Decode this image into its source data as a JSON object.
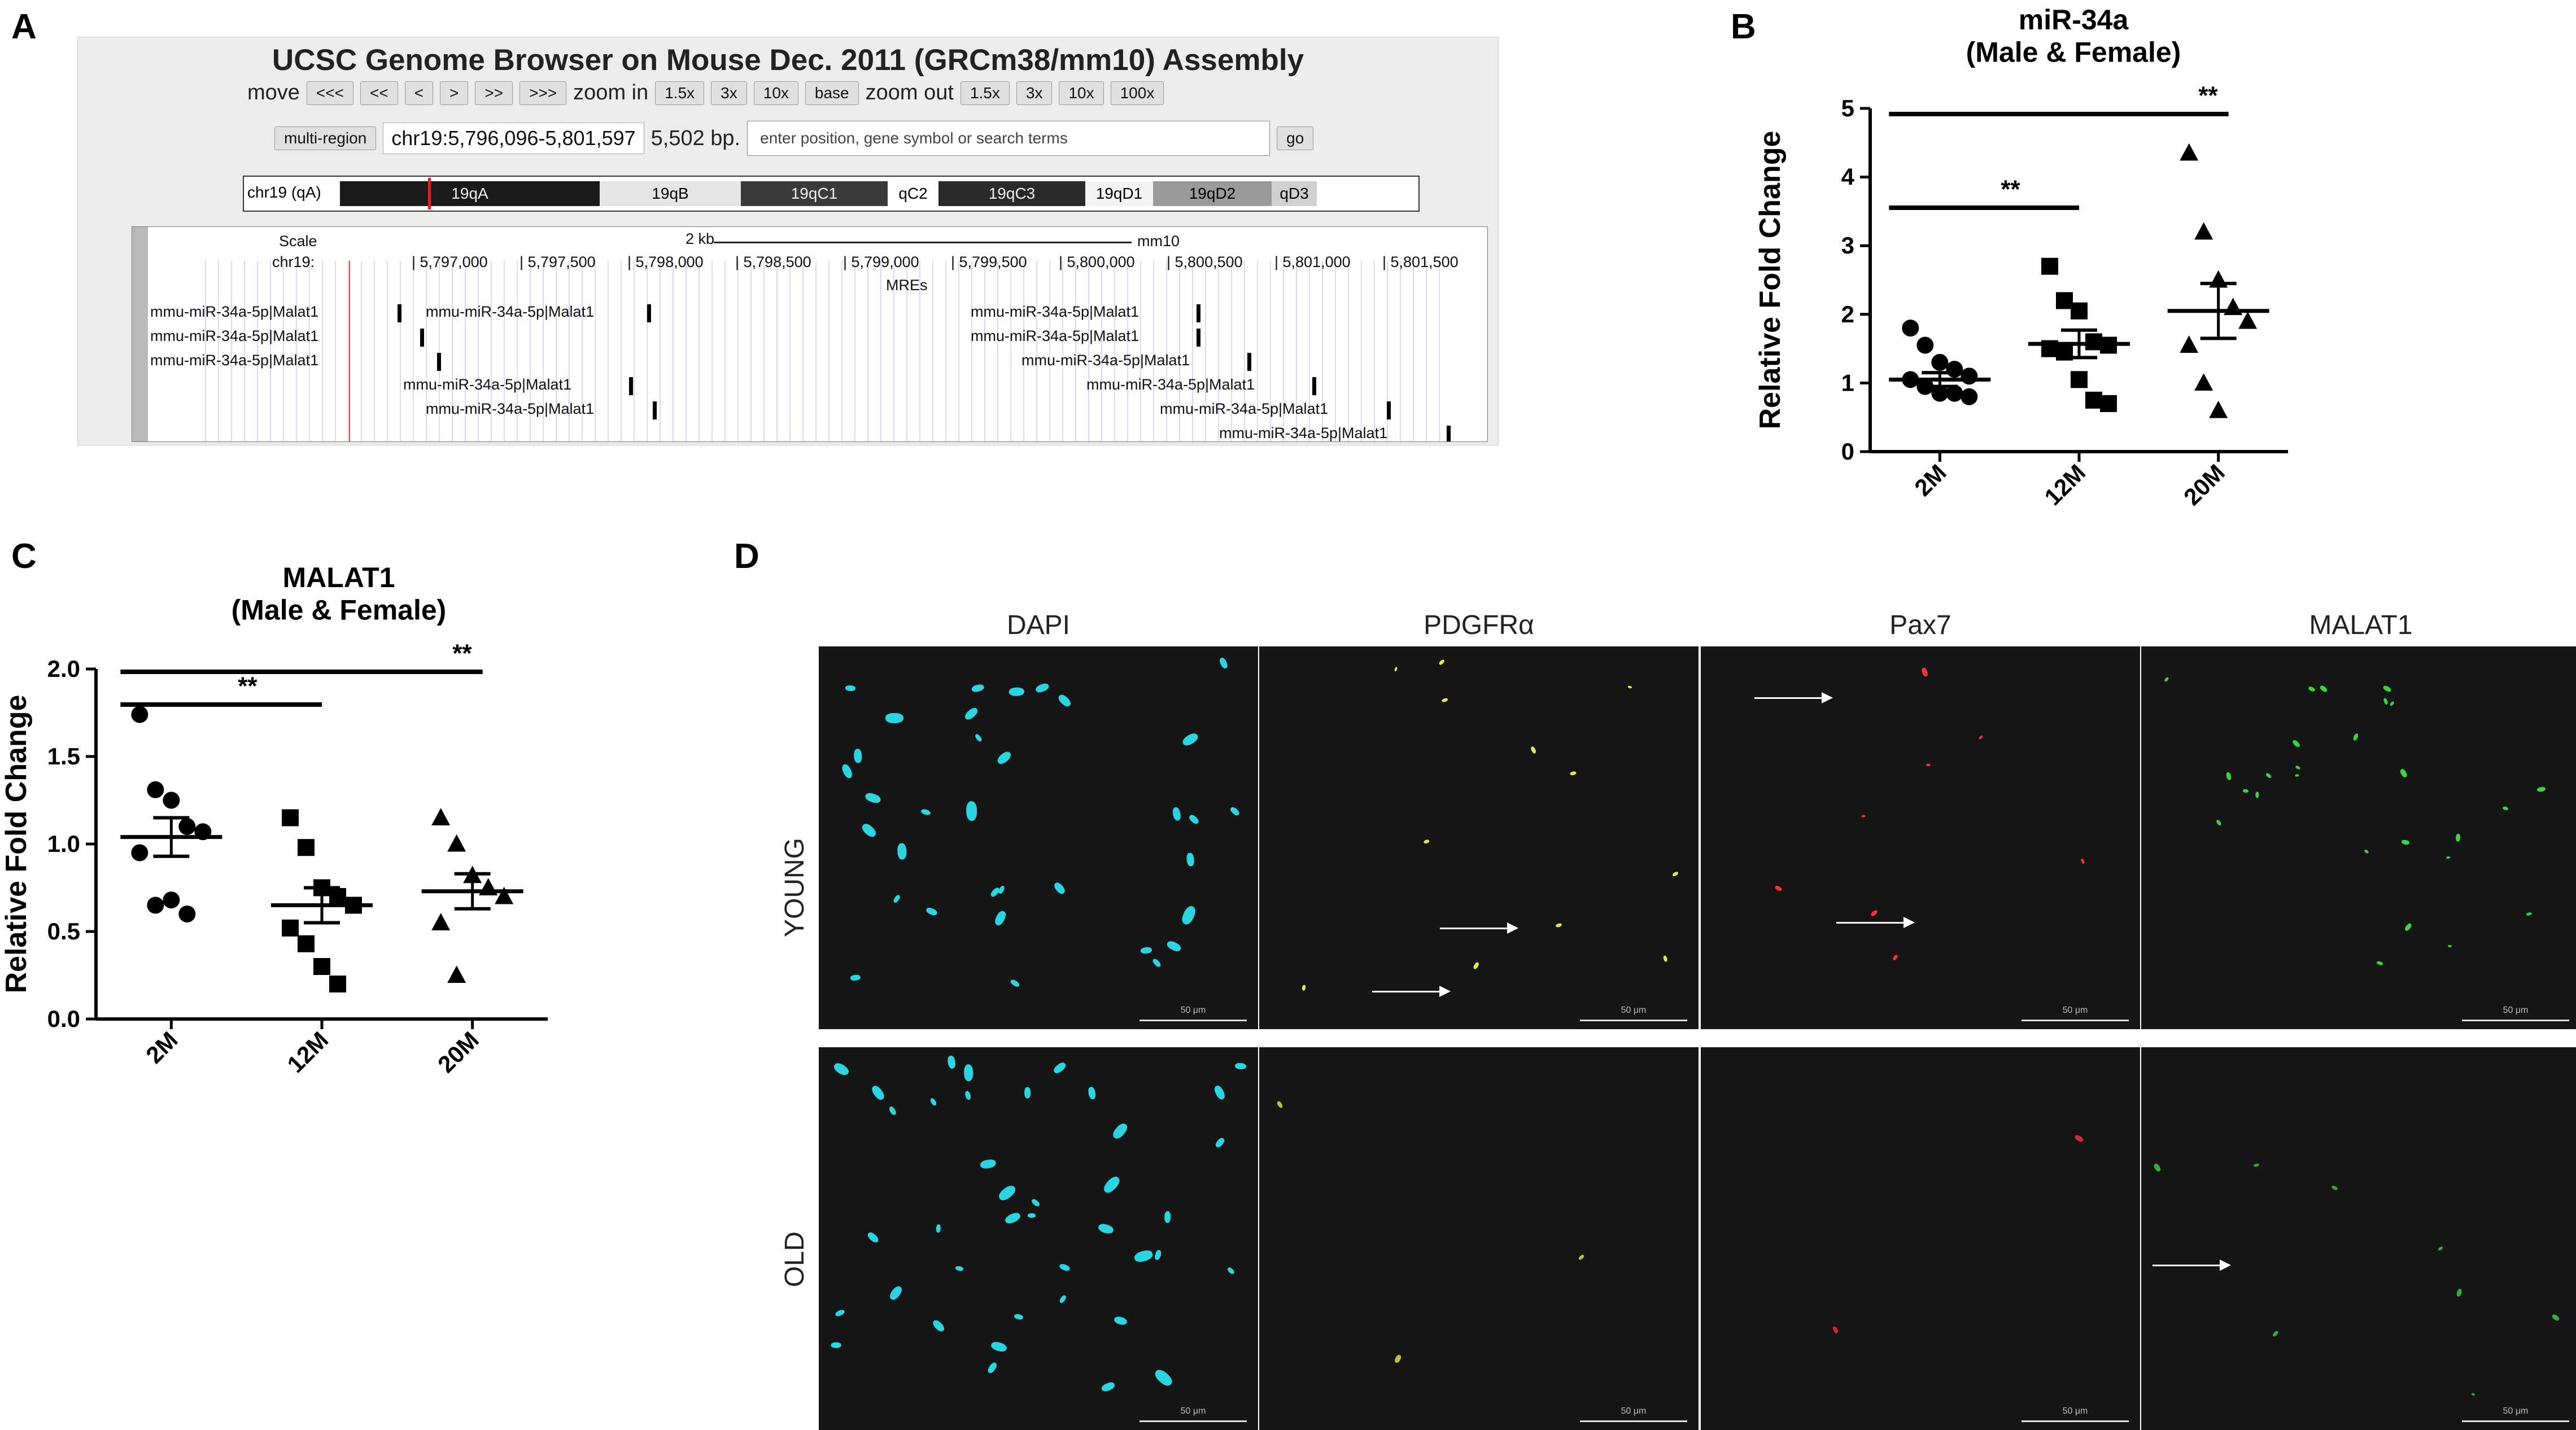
{
  "panels": {
    "a": "A",
    "b": "B",
    "c": "C",
    "d": "D"
  },
  "browser": {
    "title": "UCSC Genome Browser on Mouse Dec. 2011 (GRCm38/mm10) Assembly",
    "move_label": "move",
    "move_buttons": [
      "<<<",
      "<<",
      "<",
      ">",
      ">>",
      ">>>"
    ],
    "zoom_in_label": "zoom in",
    "zoom_in_buttons": [
      "1.5x",
      "3x",
      "10x",
      "base"
    ],
    "zoom_out_label": "zoom out",
    "zoom_out_buttons": [
      "1.5x",
      "3x",
      "10x",
      "100x"
    ],
    "multi_region_label": "multi-region",
    "position": "chr19:5,796,096-5,801,597",
    "span": "5,502 bp.",
    "search_placeholder": "enter position, gene symbol or search terms",
    "go_label": "go",
    "chromosome_label": "chr19 (qA)",
    "bands": [
      "19qA",
      "19qB",
      "19qC1",
      "qC2",
      "19qC3",
      "19qD1",
      "19qD2",
      "qD3"
    ],
    "scale_label": "Scale",
    "scale_value": "2 kb",
    "assembly": "mm10",
    "chrom_label": "chr19:",
    "coords": [
      "5,797,000",
      "5,797,500",
      "5,798,000",
      "5,798,500",
      "5,799,000",
      "5,799,500",
      "5,800,000",
      "5,800,500",
      "5,801,000",
      "5,801,500"
    ],
    "track_name": "MREs",
    "feature_label": "mmu-miR-34a-5p|Malat1"
  },
  "chart_data": [
    {
      "type": "scatter",
      "title": "miR-34a",
      "subtitle": "(Male & Female)",
      "ylabel": "Relative Fold Change",
      "xlabel": "",
      "categories": [
        "2M",
        "12M",
        "20M"
      ],
      "ylim": [
        0,
        5
      ],
      "yticks": [
        "0",
        "1",
        "2",
        "3",
        "4",
        "5"
      ],
      "markers": [
        "circle",
        "square",
        "triangle"
      ],
      "series": [
        {
          "category": "2M",
          "mean": 1.05,
          "sem": 0.1,
          "values": [
            1.8,
            1.55,
            1.3,
            1.2,
            1.1,
            1.05,
            0.95,
            0.85,
            0.85,
            0.8
          ]
        },
        {
          "category": "12M",
          "mean": 1.57,
          "sem": 0.2,
          "values": [
            2.7,
            2.2,
            2.05,
            1.6,
            1.55,
            1.5,
            1.45,
            1.05,
            0.75,
            0.7
          ]
        },
        {
          "category": "20M",
          "mean": 2.05,
          "sem": 0.4,
          "values": [
            4.35,
            3.2,
            2.5,
            2.1,
            1.9,
            1.55,
            1.0,
            0.6
          ]
        }
      ],
      "significance": [
        {
          "from": "2M",
          "to": "12M",
          "label": "**"
        },
        {
          "from": "2M",
          "to": "20M",
          "label": "**"
        }
      ]
    },
    {
      "type": "scatter",
      "title": "MALAT1",
      "subtitle": "(Male & Female)",
      "ylabel": "Relative Fold Change",
      "xlabel": "",
      "categories": [
        "2M",
        "12M",
        "20M"
      ],
      "ylim": [
        0,
        2.0
      ],
      "yticks": [
        "0.0",
        "0.5",
        "1.0",
        "1.5",
        "2.0"
      ],
      "markers": [
        "circle",
        "square",
        "triangle"
      ],
      "series": [
        {
          "category": "2M",
          "mean": 1.04,
          "sem": 0.11,
          "values": [
            1.74,
            1.31,
            1.25,
            1.1,
            1.07,
            0.95,
            0.65,
            0.68,
            0.6
          ]
        },
        {
          "category": "12M",
          "mean": 0.65,
          "sem": 0.1,
          "values": [
            1.15,
            0.98,
            0.75,
            0.7,
            0.65,
            0.52,
            0.43,
            0.3,
            0.2
          ]
        },
        {
          "category": "20M",
          "mean": 0.73,
          "sem": 0.1,
          "values": [
            1.15,
            1.0,
            0.82,
            0.75,
            0.7,
            0.55,
            0.25
          ]
        }
      ],
      "significance": [
        {
          "from": "2M",
          "to": "12M",
          "label": "**"
        },
        {
          "from": "2M",
          "to": "20M",
          "label": "**"
        }
      ]
    }
  ],
  "micrographs": {
    "columns": [
      "DAPI",
      "PDGFRα",
      "Pax7",
      "MALAT1"
    ],
    "rows": [
      "YOUNG",
      "OLD"
    ],
    "scale": "50 μm",
    "colors": {
      "DAPI": "#2ad4e0",
      "PDGFRα": "#e6e84a",
      "Pax7": "#ff3030",
      "MALAT1": "#39d63a"
    }
  }
}
